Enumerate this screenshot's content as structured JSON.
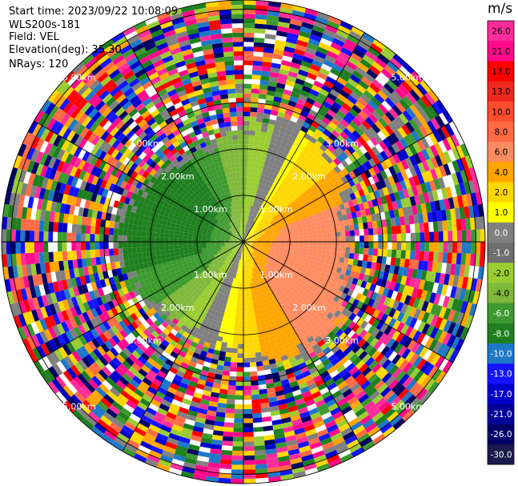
{
  "info": {
    "start_time": "Start time: 2023/09/22 10:08:09",
    "instrument": "WLS200s-181",
    "field": "Field: VEL",
    "elevation": "Elevation(deg): 35.30",
    "nrays": "NRays: 120"
  },
  "chart_data": {
    "type": "ppi",
    "field": "VEL",
    "units": "m/s",
    "nrays": 120,
    "max_range_km": 5.2,
    "range_rings_km": [
      1.0,
      2.0,
      3.0,
      5.0
    ],
    "ring_labels": [
      "1.00km",
      "2.00km",
      "3.00km",
      "5.00km"
    ],
    "valid_range_km": 2.4,
    "spokes_deg": [
      0,
      30,
      60,
      90,
      120,
      150
    ],
    "colorbar": {
      "ticks": [
        "26.0",
        "21.0",
        "17.0",
        "13.0",
        "10.0",
        "8.0",
        "6.0",
        "4.0",
        "2.0",
        "1.0",
        "0.0",
        "-1.0",
        "-2.0",
        "-4.0",
        "-6.0",
        "-8.0",
        "-10.0",
        "-13.0",
        "-17.0",
        "-21.0",
        "-26.0",
        "-30.0"
      ],
      "colors": [
        "#ff2d9b",
        "#ff0a8a",
        "#ff0000",
        "#ee2a20",
        "#ff4d2e",
        "#ff6b45",
        "#ff8c60",
        "#ffa500",
        "#ffd700",
        "#ffff00",
        "#808080",
        "#6e6e6e",
        "#9acd32",
        "#7fb83a",
        "#3c9a2e",
        "#1f7f1f",
        "#1e78c8",
        "#1414ff",
        "#0000cc",
        "#000099",
        "#000066",
        "#1a1a4d"
      ]
    },
    "structure": {
      "positive_sector_center_deg": 110,
      "negative_sector_center_deg": 290,
      "near_zero_band": "gray boundary near 2.2km range"
    }
  }
}
